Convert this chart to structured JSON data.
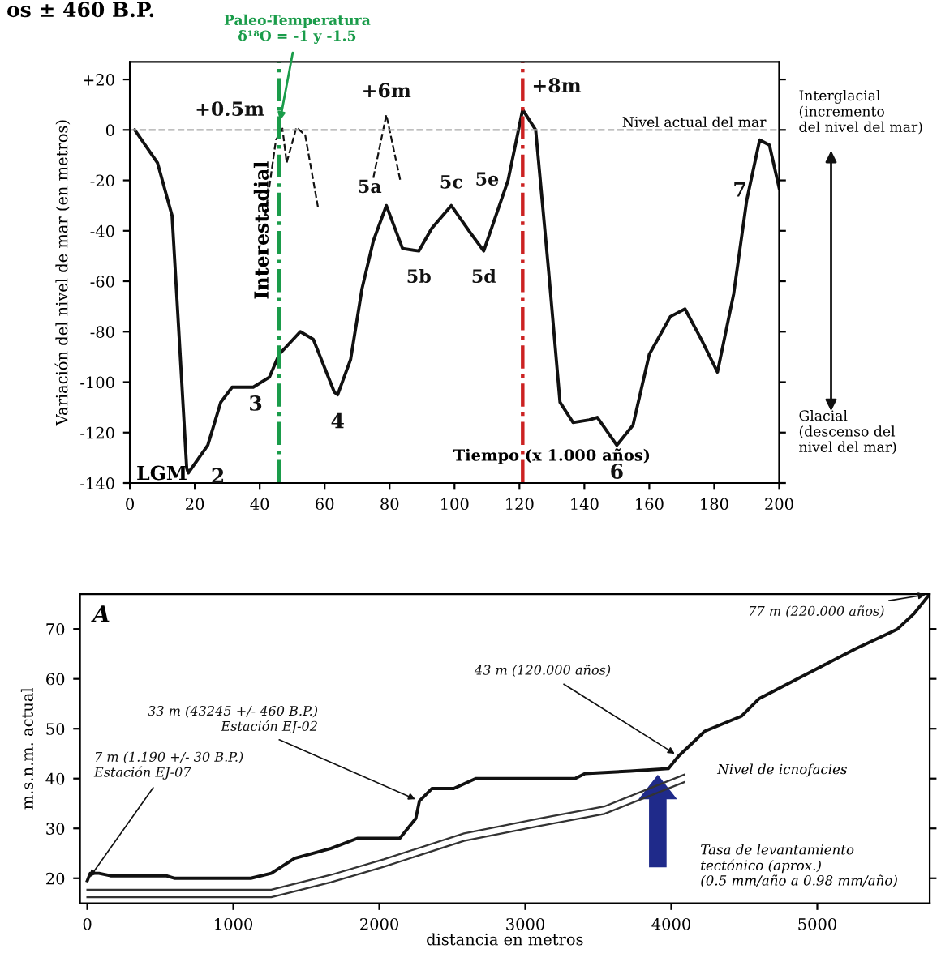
{
  "chart_data": [
    {
      "type": "line",
      "xlabel": "Tiempo (x 1.000 años)",
      "ylabel": "Variación del nivel de mar (en metros)",
      "xlim": [
        0,
        200
      ],
      "ylim": [
        -140,
        27
      ],
      "xticks": [
        0,
        20,
        40,
        60,
        80,
        100,
        120,
        140,
        160,
        180,
        200
      ],
      "yticks": [
        {
          "value": 20,
          "label": "+20"
        },
        0,
        -20,
        -40,
        -60,
        -80,
        -100,
        -120,
        -140
      ],
      "grid": false,
      "legend": false,
      "marker": "none",
      "series": [
        {
          "color": "#111111",
          "line_style": "solid",
          "x": [
            1.5,
            8.5,
            13,
            15,
            17.5,
            18,
            24,
            28,
            31.5,
            38,
            43,
            46,
            52.5,
            56.5,
            63,
            64,
            68,
            71.5,
            75,
            79,
            84,
            89,
            93,
            99,
            105,
            109,
            116.5,
            121,
            125,
            129,
            132.5,
            136.5,
            141.5,
            144,
            150,
            155,
            160,
            166.5,
            171,
            176,
            181,
            186,
            190,
            194,
            197,
            200
          ],
          "values": [
            0,
            -13,
            -34,
            -78,
            -134,
            -136,
            -125,
            -108,
            -102,
            -102,
            -98,
            -89,
            -80,
            -83,
            -104,
            -105,
            -91,
            -63,
            -44,
            -30,
            -47,
            -48,
            -39,
            -30,
            -41,
            -48,
            -20,
            8,
            0,
            -56,
            -108,
            -116,
            -115,
            -114,
            -125,
            -117,
            -89,
            -74,
            -71,
            -83,
            -96,
            -65,
            -28,
            -4,
            -6,
            -23
          ]
        },
        {
          "color": "#111111",
          "line_style": "dashed",
          "x": [
            41.7,
            45,
            47,
            48.3,
            51.3,
            54,
            58
          ],
          "values": [
            -34,
            -4,
            0.5,
            -13,
            1,
            -2,
            -31
          ]
        },
        {
          "color": "#111111",
          "line_style": "dashed",
          "x": [
            75,
            79,
            83.3
          ],
          "values": [
            -19,
            6,
            -20
          ]
        }
      ],
      "ref_lines": [
        {
          "axis": "y",
          "value": 0,
          "label": "Nivel actual del mar",
          "color": "#aaaaaa",
          "line_style": "dashed"
        },
        {
          "axis": "x",
          "value": 46,
          "color": "#1a9c4a",
          "line_style": "dashdot"
        },
        {
          "axis": "x",
          "value": 121,
          "color": "#cc2222",
          "line_style": "dashdot"
        }
      ],
      "annotations": [
        {
          "text": "Paleo-Temperatura\nδ¹⁸O = -1 y -1.5",
          "x": 46,
          "y": 2
        },
        {
          "text": "+0.5m",
          "x": 47,
          "y": 0.5
        },
        {
          "text": "+6m",
          "x": 79,
          "y": 6
        },
        {
          "text": "+8m",
          "x": 121,
          "y": 8
        },
        "Interestadial",
        "LGM",
        {
          "text": "2",
          "x": 18,
          "y": -136
        },
        {
          "text": "3",
          "x": 43,
          "y": -98
        },
        {
          "text": "4",
          "x": 64,
          "y": -105
        },
        {
          "text": "5a",
          "x": 79,
          "y": -30
        },
        {
          "text": "5b",
          "x": 89,
          "y": -48
        },
        {
          "text": "5c",
          "x": 99,
          "y": -30
        },
        {
          "text": "5d",
          "x": 109,
          "y": -48
        },
        {
          "text": "5e",
          "x": 116.5,
          "y": -20
        },
        {
          "text": "6",
          "x": 150,
          "y": -125
        },
        {
          "text": "7",
          "x": 197,
          "y": -6
        },
        "Interglacial\n(incremento\ndel nivel del mar)",
        "Glacial\n(descenso del\nnivel del mar)",
        "os ± 460 B.P."
      ]
    },
    {
      "type": "line",
      "xlabel": "distancia en metros",
      "ylabel": "m.s.n.m. actual",
      "xlim": [
        -50,
        5770
      ],
      "ylim": [
        15,
        77
      ],
      "xticks": [
        0,
        1000,
        2000,
        3000,
        4000,
        5000
      ],
      "yticks": [
        20,
        30,
        40,
        50,
        60,
        70
      ],
      "grid": false,
      "legend": false,
      "marker": "none",
      "series": [
        {
          "color": "#111111",
          "x": [
            0,
            20,
            80,
            160,
            540,
            600,
            830,
            1120,
            1260,
            1420,
            1670,
            1850,
            2140,
            2250,
            2275,
            2360,
            2510,
            2660,
            2770,
            3340,
            3410,
            3720,
            3980,
            4050,
            4230,
            4480,
            4600,
            4930,
            5260,
            5480,
            5550,
            5660,
            5770
          ],
          "values": [
            19.5,
            21,
            21,
            20.5,
            20.5,
            20,
            20,
            20,
            21,
            24,
            26,
            28,
            28,
            32,
            35.5,
            38,
            38,
            40,
            40,
            40,
            41,
            41.5,
            42,
            44.5,
            49.5,
            52.5,
            56,
            61,
            66,
            69,
            70,
            73,
            77
          ]
        },
        {
          "color": "#333333",
          "x": [
            0,
            1260,
            1670,
            2030,
            2580,
            3100,
            3540,
            4090
          ],
          "values": [
            17.7,
            17.7,
            20.7,
            23.8,
            29,
            32,
            34.4,
            40.8
          ]
        },
        {
          "color": "#333333",
          "x": [
            0,
            1260,
            1670,
            2030,
            2580,
            3100,
            3540,
            4090
          ],
          "values": [
            16.2,
            16.2,
            19.2,
            22.3,
            27.5,
            30.5,
            32.9,
            39.3
          ]
        }
      ],
      "annotations": [
        "A",
        {
          "text": "7 m (1.190 +/- 30 B.P.)\nEstación EJ-07",
          "x": 0,
          "y": 19.5
        },
        {
          "text": "33 m (43245 +/- 460 B.P.)\nEstación EJ-02",
          "x": 2275,
          "y": 35.5
        },
        {
          "text": "43 m (120.000 años)",
          "x": 4050,
          "y": 44.5
        },
        {
          "text": "77 m (220.000 años)",
          "x": 5770,
          "y": 77
        },
        "Nivel de icnofacies",
        "Tasa de levantamiento\ntectónico (aprox.)\n(0.5 mm/año a 0.98 mm/año)"
      ]
    }
  ]
}
